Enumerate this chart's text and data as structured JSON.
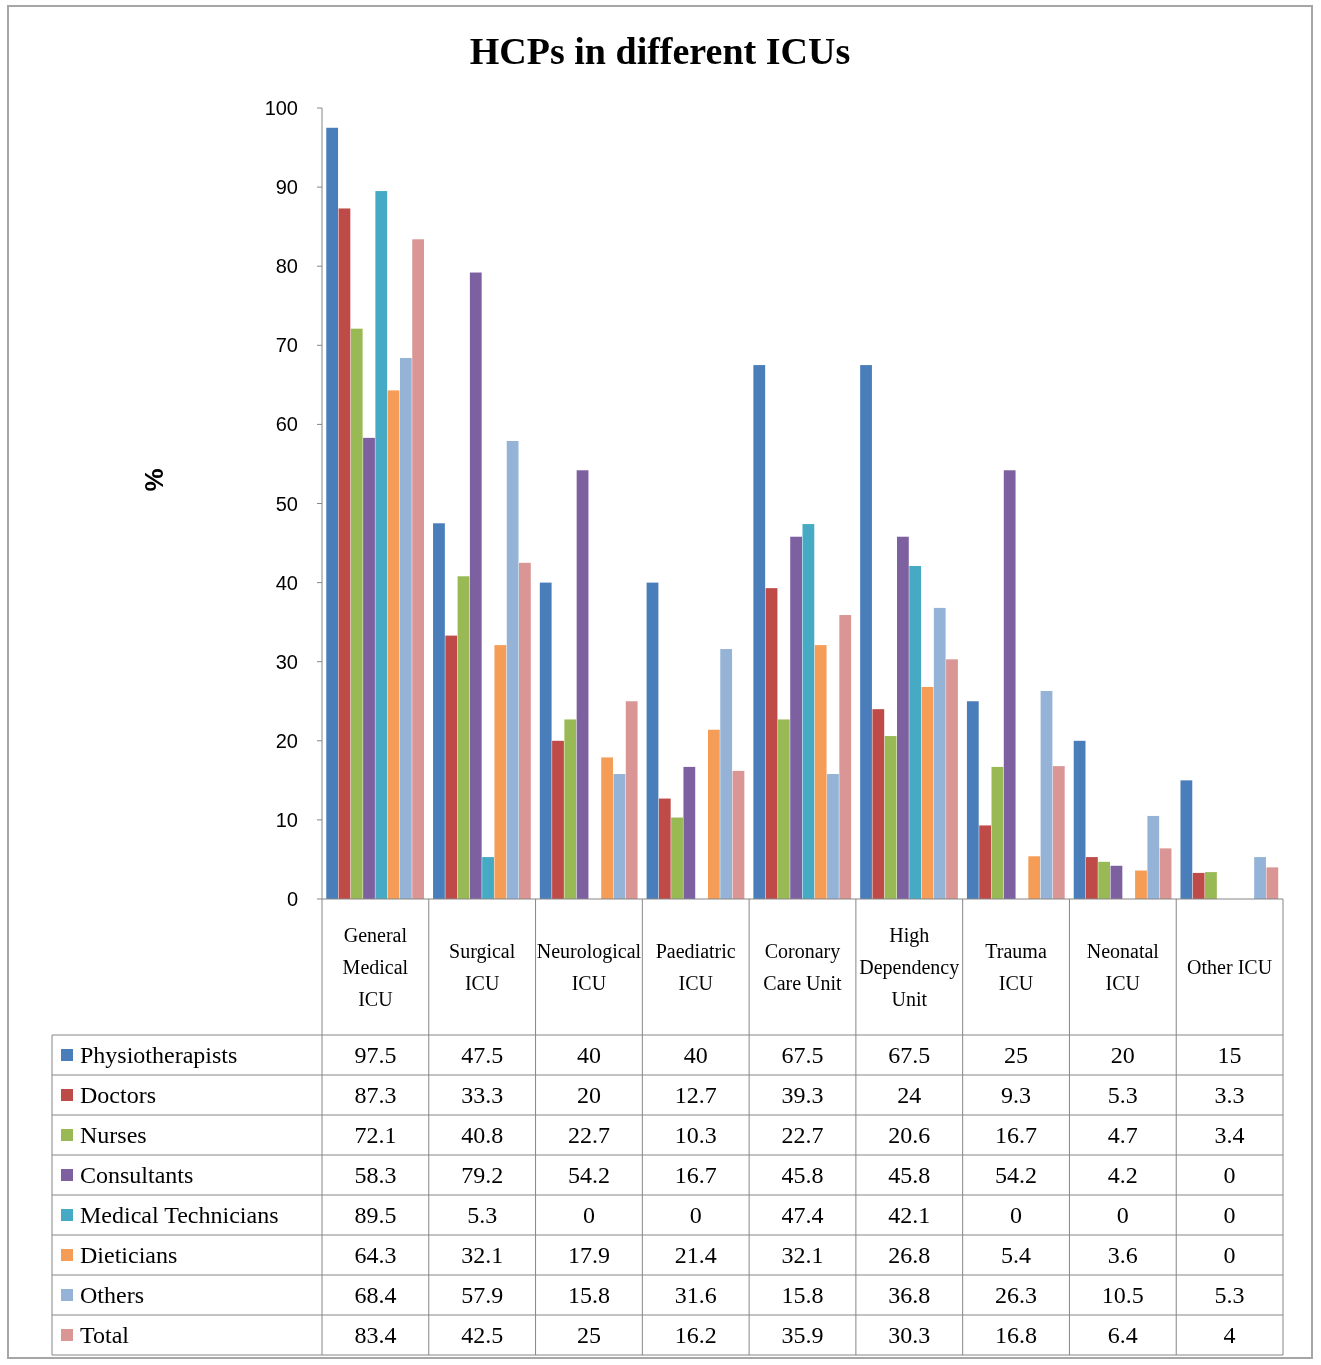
{
  "chart_data": {
    "type": "bar",
    "title": "HCPs in different ICUs",
    "ylabel": "%",
    "categories": [
      "General Medical ICU",
      "Surgical ICU",
      "Neurological ICU",
      "Paediatric ICU",
      "Coronary Care Unit",
      "High Dependency Unit",
      "Trauma ICU",
      "Neonatal ICU",
      "Other ICU"
    ],
    "series": [
      {
        "name": "Physiotherapists",
        "color": "#4a7ebb",
        "values": [
          97.5,
          47.5,
          40,
          40,
          67.5,
          67.5,
          25,
          20,
          15
        ]
      },
      {
        "name": "Doctors",
        "color": "#be4b48",
        "values": [
          87.3,
          33.3,
          20,
          12.7,
          39.3,
          24,
          9.3,
          5.3,
          3.3
        ]
      },
      {
        "name": "Nurses",
        "color": "#98b954",
        "values": [
          72.1,
          40.8,
          22.7,
          10.3,
          22.7,
          20.6,
          16.7,
          4.7,
          3.4
        ]
      },
      {
        "name": "Consultants",
        "color": "#7d60a0",
        "values": [
          58.3,
          79.2,
          54.2,
          16.7,
          45.8,
          45.8,
          54.2,
          4.2,
          0
        ]
      },
      {
        "name": "Medical Technicians",
        "color": "#46aac5",
        "values": [
          89.5,
          5.3,
          0,
          0,
          47.4,
          42.1,
          0,
          0,
          0
        ]
      },
      {
        "name": "Dieticians",
        "color": "#f59d56",
        "values": [
          64.3,
          32.1,
          17.9,
          21.4,
          32.1,
          26.8,
          5.4,
          3.6,
          0
        ]
      },
      {
        "name": "Others",
        "color": "#95b3d7",
        "values": [
          68.4,
          57.9,
          15.8,
          31.6,
          15.8,
          36.8,
          26.3,
          10.5,
          5.3
        ]
      },
      {
        "name": "Total",
        "color": "#d99694",
        "values": [
          83.4,
          42.5,
          25,
          16.2,
          35.9,
          30.3,
          16.8,
          6.4,
          4
        ]
      }
    ],
    "ylim": [
      0,
      100
    ],
    "yticks": [
      0,
      10,
      20,
      30,
      40,
      50,
      60,
      70,
      80,
      90,
      100
    ],
    "grid": false,
    "legend": "bottom",
    "data_labels": true
  }
}
